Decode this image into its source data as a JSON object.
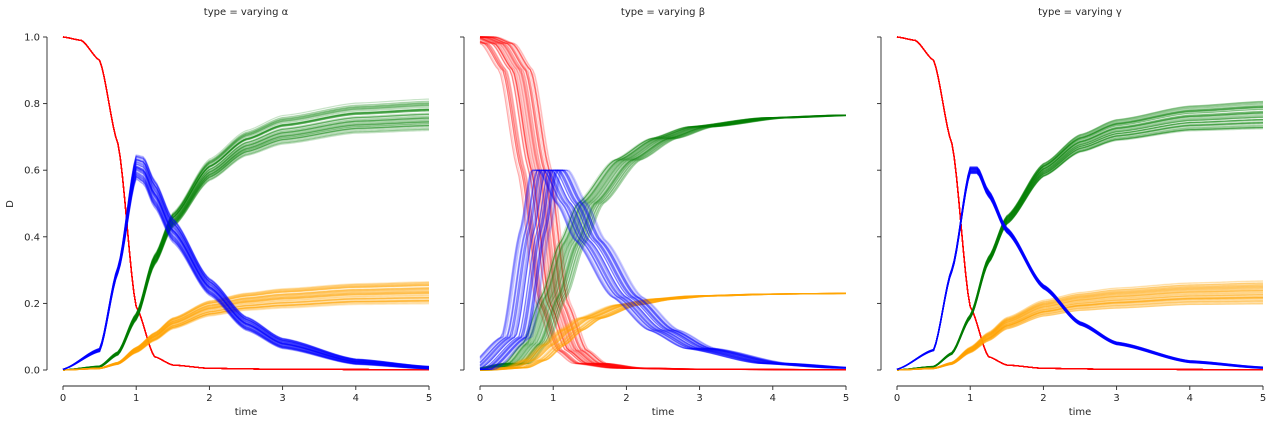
{
  "chart_data": {
    "type": "line",
    "ylabel": "D",
    "xlabel": "time",
    "xlim": [
      0,
      5
    ],
    "ylim": [
      0,
      1
    ],
    "xticks": [
      "0",
      "1",
      "2",
      "3",
      "4",
      "5"
    ],
    "yticks": [
      "0.0",
      "0.2",
      "0.4",
      "0.6",
      "0.8",
      "1.0"
    ],
    "grid": false,
    "legend": "none",
    "series_colors": {
      "S": "#ff0000",
      "I": "#0000ff",
      "R": "#008000",
      "D": "#ffa500"
    },
    "panels": [
      {
        "title": "type = varying α",
        "band_count": 60,
        "S": {
          "x": [
            0,
            0.25,
            0.5,
            0.75,
            1.0,
            1.25,
            1.5,
            2.0,
            3.0,
            5.0
          ],
          "y": [
            1.0,
            0.99,
            0.93,
            0.68,
            0.19,
            0.04,
            0.015,
            0.005,
            0.002,
            0.001
          ]
        },
        "I": {
          "x": [
            0,
            0.5,
            0.75,
            1.0,
            1.1,
            1.25,
            1.5,
            2.0,
            2.5,
            3.0,
            4.0,
            5.0
          ],
          "y": [
            0.002,
            0.06,
            0.3,
            0.61,
            0.6,
            0.53,
            0.42,
            0.25,
            0.14,
            0.08,
            0.025,
            0.007
          ],
          "spread": [
            0,
            0.005,
            0.01,
            0.035,
            0.04,
            0.04,
            0.035,
            0.025,
            0.02,
            0.015,
            0.008,
            0.004
          ]
        },
        "R": {
          "x": [
            0,
            0.5,
            0.75,
            1.0,
            1.25,
            1.5,
            2.0,
            2.5,
            3.0,
            4.0,
            5.0
          ],
          "y": [
            0.0,
            0.01,
            0.05,
            0.16,
            0.33,
            0.45,
            0.6,
            0.68,
            0.72,
            0.755,
            0.765
          ],
          "spread": [
            0,
            0.002,
            0.005,
            0.01,
            0.015,
            0.02,
            0.03,
            0.035,
            0.04,
            0.042,
            0.044
          ]
        },
        "D": {
          "x": [
            0,
            0.5,
            0.75,
            1.0,
            1.25,
            1.5,
            2.0,
            2.5,
            3.0,
            4.0,
            5.0
          ],
          "y": [
            0.0,
            0.005,
            0.02,
            0.06,
            0.1,
            0.14,
            0.185,
            0.205,
            0.215,
            0.228,
            0.232
          ],
          "spread": [
            0,
            0.001,
            0.003,
            0.008,
            0.012,
            0.016,
            0.022,
            0.025,
            0.028,
            0.03,
            0.032
          ]
        }
      },
      {
        "title": "type = varying β",
        "band_count": 60,
        "S": {
          "x": [
            0,
            0.25,
            0.5,
            0.75,
            1.0,
            1.25,
            1.5,
            2.0,
            3.0,
            5.0
          ],
          "y": [
            1.0,
            0.98,
            0.9,
            0.6,
            0.2,
            0.06,
            0.02,
            0.006,
            0.002,
            0.001
          ],
          "shift": 0.22
        },
        "I": {
          "x": [
            0,
            0.5,
            0.75,
            0.9,
            1.0,
            1.25,
            1.5,
            2.0,
            2.5,
            3.0,
            4.0,
            5.0
          ],
          "y": [
            0.002,
            0.1,
            0.42,
            0.6,
            0.6,
            0.5,
            0.39,
            0.22,
            0.12,
            0.065,
            0.02,
            0.006
          ],
          "shift": 0.2
        },
        "R": {
          "x": [
            0,
            0.5,
            0.75,
            1.0,
            1.25,
            1.5,
            2.0,
            2.5,
            3.0,
            4.0,
            5.0
          ],
          "y": [
            0.0,
            0.02,
            0.08,
            0.22,
            0.38,
            0.5,
            0.63,
            0.695,
            0.73,
            0.757,
            0.765
          ],
          "shift": 0.18
        },
        "D": {
          "x": [
            0,
            0.5,
            0.75,
            1.0,
            1.25,
            1.5,
            2.0,
            2.5,
            3.0,
            4.0,
            5.0
          ],
          "y": [
            0.0,
            0.007,
            0.03,
            0.075,
            0.12,
            0.155,
            0.195,
            0.213,
            0.222,
            0.228,
            0.23
          ],
          "shift": 0.18
        }
      },
      {
        "title": "type = varying γ",
        "band_count": 60,
        "S": {
          "x": [
            0,
            0.25,
            0.5,
            0.75,
            1.0,
            1.25,
            1.5,
            2.0,
            3.0,
            5.0
          ],
          "y": [
            1.0,
            0.99,
            0.93,
            0.68,
            0.19,
            0.04,
            0.015,
            0.005,
            0.002,
            0.001
          ]
        },
        "I": {
          "x": [
            0,
            0.5,
            0.75,
            1.0,
            1.1,
            1.25,
            1.5,
            2.0,
            2.5,
            3.0,
            4.0,
            5.0
          ],
          "y": [
            0.002,
            0.06,
            0.3,
            0.6,
            0.6,
            0.53,
            0.42,
            0.25,
            0.14,
            0.08,
            0.025,
            0.007
          ],
          "spread": [
            0,
            0.002,
            0.005,
            0.01,
            0.01,
            0.01,
            0.008,
            0.006,
            0.005,
            0.004,
            0.003,
            0.002
          ]
        },
        "R": {
          "x": [
            0,
            0.5,
            0.75,
            1.0,
            1.25,
            1.5,
            2.0,
            2.5,
            3.0,
            4.0,
            5.0
          ],
          "y": [
            0.0,
            0.01,
            0.05,
            0.16,
            0.33,
            0.45,
            0.6,
            0.68,
            0.72,
            0.755,
            0.765
          ],
          "spread": [
            0,
            0.001,
            0.003,
            0.006,
            0.01,
            0.013,
            0.02,
            0.027,
            0.032,
            0.038,
            0.042
          ]
        },
        "D": {
          "x": [
            0,
            0.5,
            0.75,
            1.0,
            1.25,
            1.5,
            2.0,
            2.5,
            3.0,
            4.0,
            5.0
          ],
          "y": [
            0.0,
            0.005,
            0.02,
            0.06,
            0.1,
            0.14,
            0.185,
            0.205,
            0.215,
            0.228,
            0.232
          ],
          "spread": [
            0,
            0.001,
            0.003,
            0.008,
            0.012,
            0.016,
            0.022,
            0.025,
            0.028,
            0.03,
            0.032
          ]
        }
      }
    ]
  }
}
